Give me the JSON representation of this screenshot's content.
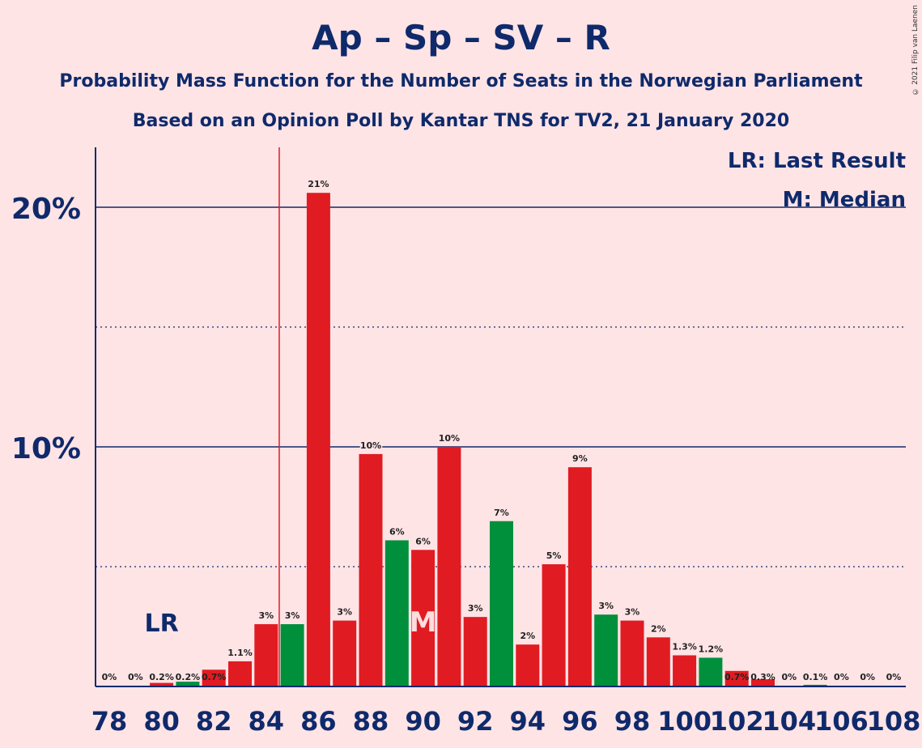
{
  "chart_data": {
    "type": "bar",
    "title": "Ap – Sp – SV – R",
    "subtitle": "Probability Mass Function for the Number of Seats in the Norwegian Parliament",
    "subtitle2": "Based on an Opinion Poll by Kantar TNS for TV2, 21 January 2020",
    "copyright": "© 2021 Filip van Laenen",
    "legend": {
      "lr": "LR: Last Result",
      "median": "M: Median"
    },
    "lr_label": "LR",
    "median_label": "M",
    "last_result_seat": 85,
    "median_seat": 90,
    "y_ticks": [
      {
        "value": 10,
        "label": "10%"
      },
      {
        "value": 20,
        "label": "20%"
      }
    ],
    "y_dotted": [
      5,
      15
    ],
    "ylim": [
      0,
      22.5
    ],
    "x_tick_labels": [
      "78",
      "80",
      "82",
      "84",
      "86",
      "88",
      "90",
      "92",
      "94",
      "96",
      "98",
      "100",
      "102",
      "104",
      "106",
      "108"
    ],
    "bars": [
      {
        "seat": 78,
        "value": 0,
        "label": "0%",
        "color": "red"
      },
      {
        "seat": 79,
        "value": 0,
        "label": "0%",
        "color": "red"
      },
      {
        "seat": 80,
        "value": 0.15,
        "label": "0.2%",
        "color": "red"
      },
      {
        "seat": 81,
        "value": 0.2,
        "label": "0.2%",
        "color": "green"
      },
      {
        "seat": 82,
        "value": 0.7,
        "label": "0.7%",
        "color": "red"
      },
      {
        "seat": 83,
        "value": 1.05,
        "label": "1.1%",
        "color": "red"
      },
      {
        "seat": 84,
        "value": 2.6,
        "label": "3%",
        "color": "red"
      },
      {
        "seat": 85,
        "value": 2.6,
        "label": "3%",
        "color": "green"
      },
      {
        "seat": 86,
        "value": 20.6,
        "label": "21%",
        "color": "red"
      },
      {
        "seat": 87,
        "value": 2.75,
        "label": "3%",
        "color": "red"
      },
      {
        "seat": 88,
        "value": 9.7,
        "label": "10%",
        "color": "red"
      },
      {
        "seat": 89,
        "value": 6.1,
        "label": "6%",
        "color": "green"
      },
      {
        "seat": 90,
        "value": 5.7,
        "label": "6%",
        "color": "red"
      },
      {
        "seat": 91,
        "value": 10.0,
        "label": "10%",
        "color": "red"
      },
      {
        "seat": 92,
        "value": 2.9,
        "label": "3%",
        "color": "red"
      },
      {
        "seat": 93,
        "value": 6.9,
        "label": "7%",
        "color": "green"
      },
      {
        "seat": 94,
        "value": 1.75,
        "label": "2%",
        "color": "red"
      },
      {
        "seat": 95,
        "value": 5.1,
        "label": "5%",
        "color": "red"
      },
      {
        "seat": 96,
        "value": 9.15,
        "label": "9%",
        "color": "red"
      },
      {
        "seat": 97,
        "value": 3.0,
        "label": "3%",
        "color": "green"
      },
      {
        "seat": 98,
        "value": 2.75,
        "label": "3%",
        "color": "red"
      },
      {
        "seat": 99,
        "value": 2.05,
        "label": "2%",
        "color": "red"
      },
      {
        "seat": 100,
        "value": 1.3,
        "label": "1.3%",
        "color": "red"
      },
      {
        "seat": 101,
        "value": 1.2,
        "label": "1.2%",
        "color": "green"
      },
      {
        "seat": 102,
        "value": 0.65,
        "label": "0.7%",
        "color": "red"
      },
      {
        "seat": 103,
        "value": 0.3,
        "label": "0.3%",
        "color": "red"
      },
      {
        "seat": 104,
        "value": 0,
        "label": "0%",
        "color": "red"
      },
      {
        "seat": 105,
        "value": 0.07,
        "label": "0.1%",
        "color": "green"
      },
      {
        "seat": 106,
        "value": 0,
        "label": "0%",
        "color": "red"
      },
      {
        "seat": 107,
        "value": 0,
        "label": "0%",
        "color": "red"
      },
      {
        "seat": 108,
        "value": 0,
        "label": "0%",
        "color": "red"
      }
    ],
    "colors": {
      "red": "#e11b22",
      "green": "#00903c",
      "axis": "#0f2a6b",
      "lr_line": "#e11b22",
      "background": "#ffe4e6"
    }
  }
}
